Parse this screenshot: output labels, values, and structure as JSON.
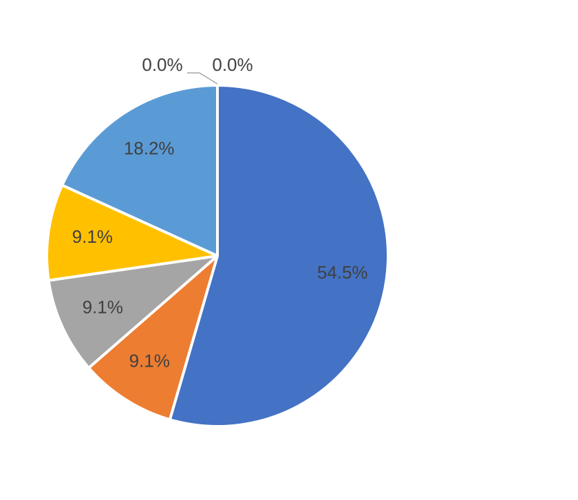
{
  "chart_data": {
    "type": "pie",
    "categories": [
      "",
      "",
      "",
      "",
      "",
      "",
      ""
    ],
    "values": [
      54.5,
      9.1,
      9.1,
      9.1,
      18.2,
      0.0,
      0.0
    ],
    "data_labels": [
      "54.5%",
      "9.1%",
      "9.1%",
      "9.1%",
      "18.2%",
      "0.0%",
      "0.0%"
    ],
    "colors": [
      "#4472C4",
      "#ED7D31",
      "#A5A5A5",
      "#FFC000",
      "#5B9BD5",
      "#70AD47",
      "#264478"
    ],
    "start_angle_deg": 0,
    "direction": "clockwise",
    "legend": "none",
    "title": ""
  }
}
